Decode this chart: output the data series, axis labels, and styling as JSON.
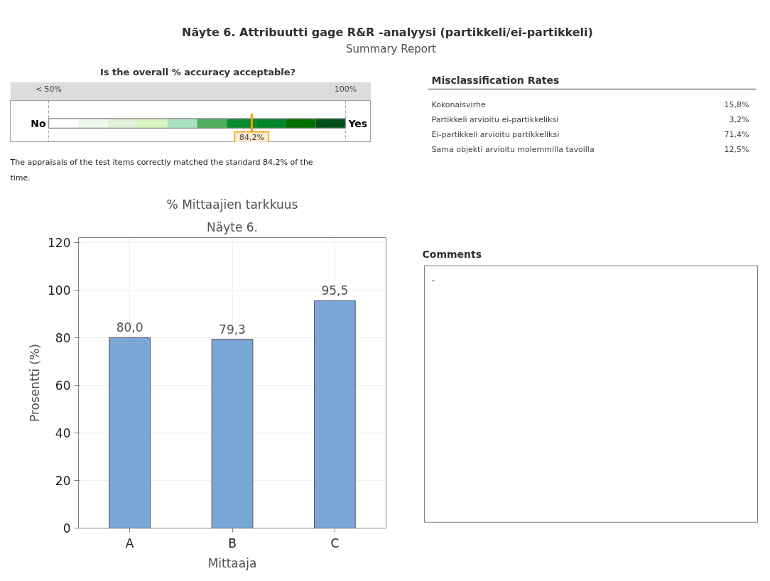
{
  "chart_data": [
    {
      "type": "other",
      "title": "Näyte 6. Attribuutti gage R&R -analyysi (partikkeli/ei-partikkeli)",
      "subtitle": "Summary Report"
    },
    {
      "type": "other",
      "title": "Is the overall % accuracy acceptable?",
      "values": [
        84.2
      ],
      "value_labels": [
        "84,2%"
      ],
      "color": "#f5a000",
      "annotations": [
        "< 50%",
        "100%",
        "No",
        "Yes",
        "The appraisals of the test items correctly matched the standard 84,2% of the time."
      ]
    },
    {
      "type": "other",
      "title": "Misclassification Rates",
      "categories": [
        "Kokonaisvirhe",
        "Partikkeli arvioitu ei-partikkeliksi",
        "Ei-partikkeli arvioitu partikkeliksi",
        "Sama objekti arvioitu molemmilla tavoilla"
      ],
      "values": [
        15.8,
        3.2,
        71.4,
        12.5
      ],
      "value_labels": [
        "15,8%",
        "3,2%",
        "71,4%",
        "12,5%"
      ]
    },
    {
      "type": "bar",
      "title": "% Mittaajien tarkkuus",
      "subtitle": "Näyte 6.",
      "xlabel": "Mittaaja",
      "ylabel": "Prosentti (%)",
      "categories": [
        "A",
        "B",
        "C"
      ],
      "values": [
        80.0,
        79.3,
        95.5
      ],
      "value_labels": [
        "80,0",
        "79,3",
        "95,5"
      ],
      "color": "#7ba6d8",
      "ylim": [
        0,
        122
      ],
      "yticks": [
        0,
        20,
        40,
        60,
        80,
        100,
        120
      ],
      "grid": true
    },
    {
      "type": "other",
      "title": "Comments",
      "annotations": [
        "-"
      ]
    }
  ]
}
